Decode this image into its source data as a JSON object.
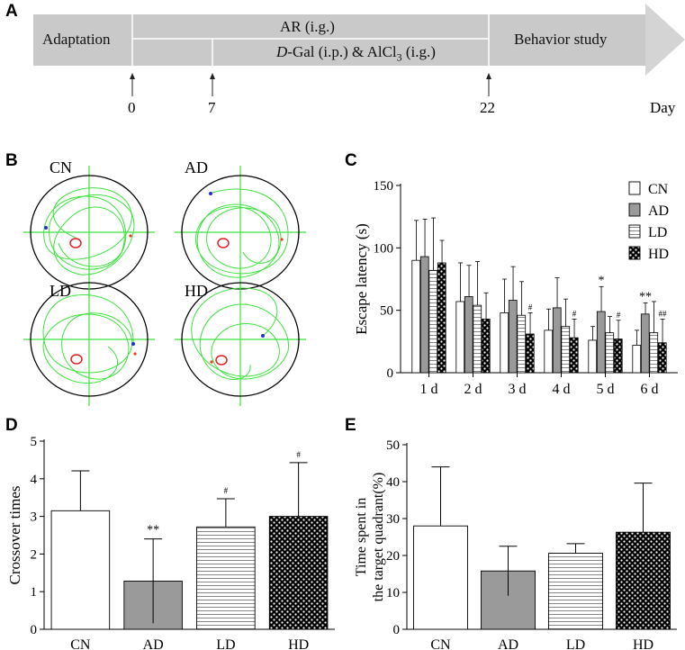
{
  "panels": {
    "A": "A",
    "B": "B",
    "C": "C",
    "D": "D",
    "E": "E"
  },
  "timeline": {
    "segments": [
      "Adaptation",
      "AR (i.g.)",
      "Behavior study"
    ],
    "drug_line": {
      "italic": "D",
      "rest": "-Gal (i.p.) & AlCl",
      "sub": "3",
      "tail": " (i.g.)"
    },
    "ticks": [
      "0",
      "7",
      "22"
    ],
    "axis_label": "Day",
    "colors": {
      "bar": "#c9c9c9",
      "arrow": "#d4d4d4",
      "divider": "#ffffff"
    }
  },
  "mazes": [
    {
      "label": "CN",
      "trace_color": "#3fe23f",
      "circle_color": "#e02020"
    },
    {
      "label": "AD",
      "trace_color": "#3fe23f",
      "circle_color": "#e02020"
    },
    {
      "label": "LD",
      "trace_color": "#3fe23f",
      "circle_color": "#e02020"
    },
    {
      "label": "HD",
      "trace_color": "#3fe23f",
      "circle_color": "#e02020"
    }
  ],
  "chart_data": [
    {
      "id": "C",
      "type": "bar",
      "title": "",
      "xlabel": "",
      "ylabel": "Escape latency (s)",
      "categories": [
        "1 d",
        "2 d",
        "3 d",
        "4 d",
        "5 d",
        "6 d"
      ],
      "ylim": [
        0,
        150
      ],
      "yticks": [
        "0",
        "50",
        "100",
        "150"
      ],
      "series": [
        {
          "name": "CN",
          "pattern": "white",
          "values": [
            90,
            57,
            48,
            34,
            26,
            22
          ],
          "errors": [
            32,
            31,
            27,
            17,
            11,
            12
          ],
          "annotations": [
            "",
            "",
            "",
            "",
            "",
            ""
          ]
        },
        {
          "name": "AD",
          "pattern": "gray",
          "values": [
            93,
            61,
            58,
            52,
            49,
            47
          ],
          "errors": [
            30,
            25,
            27,
            24,
            20,
            9
          ],
          "annotations": [
            "",
            "",
            "",
            "",
            "*",
            "**"
          ]
        },
        {
          "name": "LD",
          "pattern": "hlines",
          "values": [
            82,
            54,
            46,
            37,
            32,
            32
          ],
          "errors": [
            42,
            35,
            27,
            22,
            13,
            25
          ],
          "annotations": [
            "",
            "",
            "",
            "",
            "",
            ""
          ]
        },
        {
          "name": "HD",
          "pattern": "checker",
          "values": [
            88,
            43,
            31,
            28,
            27,
            24
          ],
          "errors": [
            18,
            21,
            17,
            15,
            15,
            19
          ],
          "annotations": [
            "",
            "",
            "#",
            "#",
            "#",
            "##"
          ]
        }
      ],
      "legend": "top-right"
    },
    {
      "id": "D",
      "type": "bar",
      "title": "",
      "xlabel": "",
      "ylabel": "Crossover times",
      "categories": [
        "CN",
        "AD",
        "LD",
        "HD"
      ],
      "ylim": [
        0,
        5
      ],
      "yticks": [
        "0",
        "1",
        "2",
        "3",
        "4",
        "5"
      ],
      "patterns": [
        "white",
        "gray",
        "hlines",
        "checker"
      ],
      "values": [
        3.15,
        1.28,
        2.72,
        3.0
      ],
      "errors": [
        1.06,
        1.12,
        0.75,
        1.43
      ],
      "annotations": [
        "",
        "**",
        "#",
        "#"
      ]
    },
    {
      "id": "E",
      "type": "bar",
      "title": "",
      "xlabel": "",
      "ylabel": [
        "Time spent in",
        "the target quadrant(%)"
      ],
      "categories": [
        "CN",
        "AD",
        "LD",
        "HD"
      ],
      "ylim": [
        0,
        50
      ],
      "yticks": [
        "0",
        "10",
        "20",
        "30",
        "40",
        "50"
      ],
      "patterns": [
        "white",
        "gray",
        "hlines",
        "checker"
      ],
      "values": [
        28,
        15.8,
        20.6,
        26.3
      ],
      "errors": [
        16,
        6.7,
        2.6,
        13.3
      ],
      "annotations": [
        "",
        "",
        "",
        ""
      ]
    }
  ]
}
